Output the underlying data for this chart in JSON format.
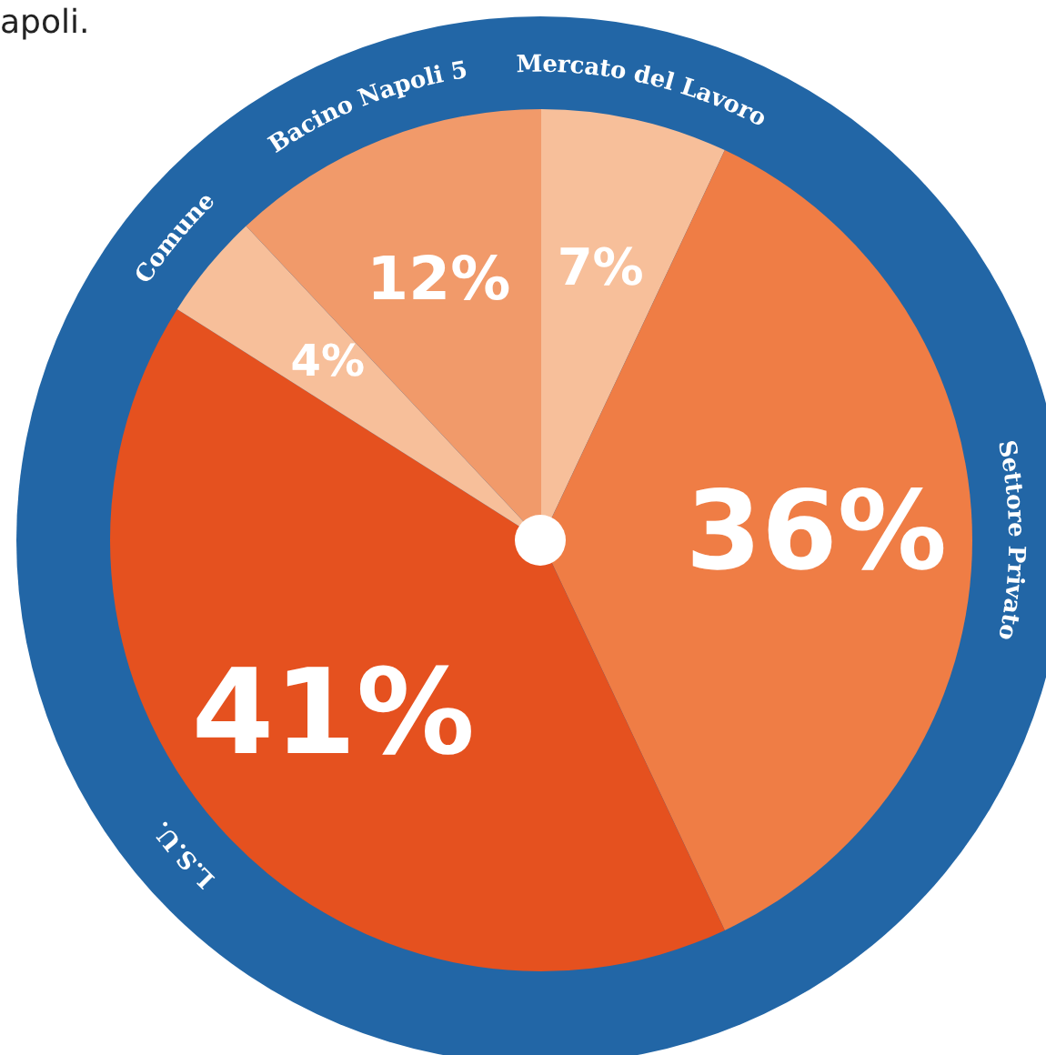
{
  "chart_data": {
    "type": "pie",
    "categories": [
      "Mercato del Lavoro",
      "Settore Privato",
      "L.S.U.",
      "Comune",
      "Bacino Napoli 5"
    ],
    "values": [
      7,
      36,
      41,
      4,
      12
    ],
    "value_labels": [
      "7%",
      "36%",
      "41%",
      "4%",
      "12%"
    ],
    "colors": [
      "#f7bf9a",
      "#ef7d45",
      "#e5511f",
      "#f7bf9a",
      "#f19a6a"
    ],
    "annotations": [
      "apoli."
    ],
    "legend": false
  }
}
